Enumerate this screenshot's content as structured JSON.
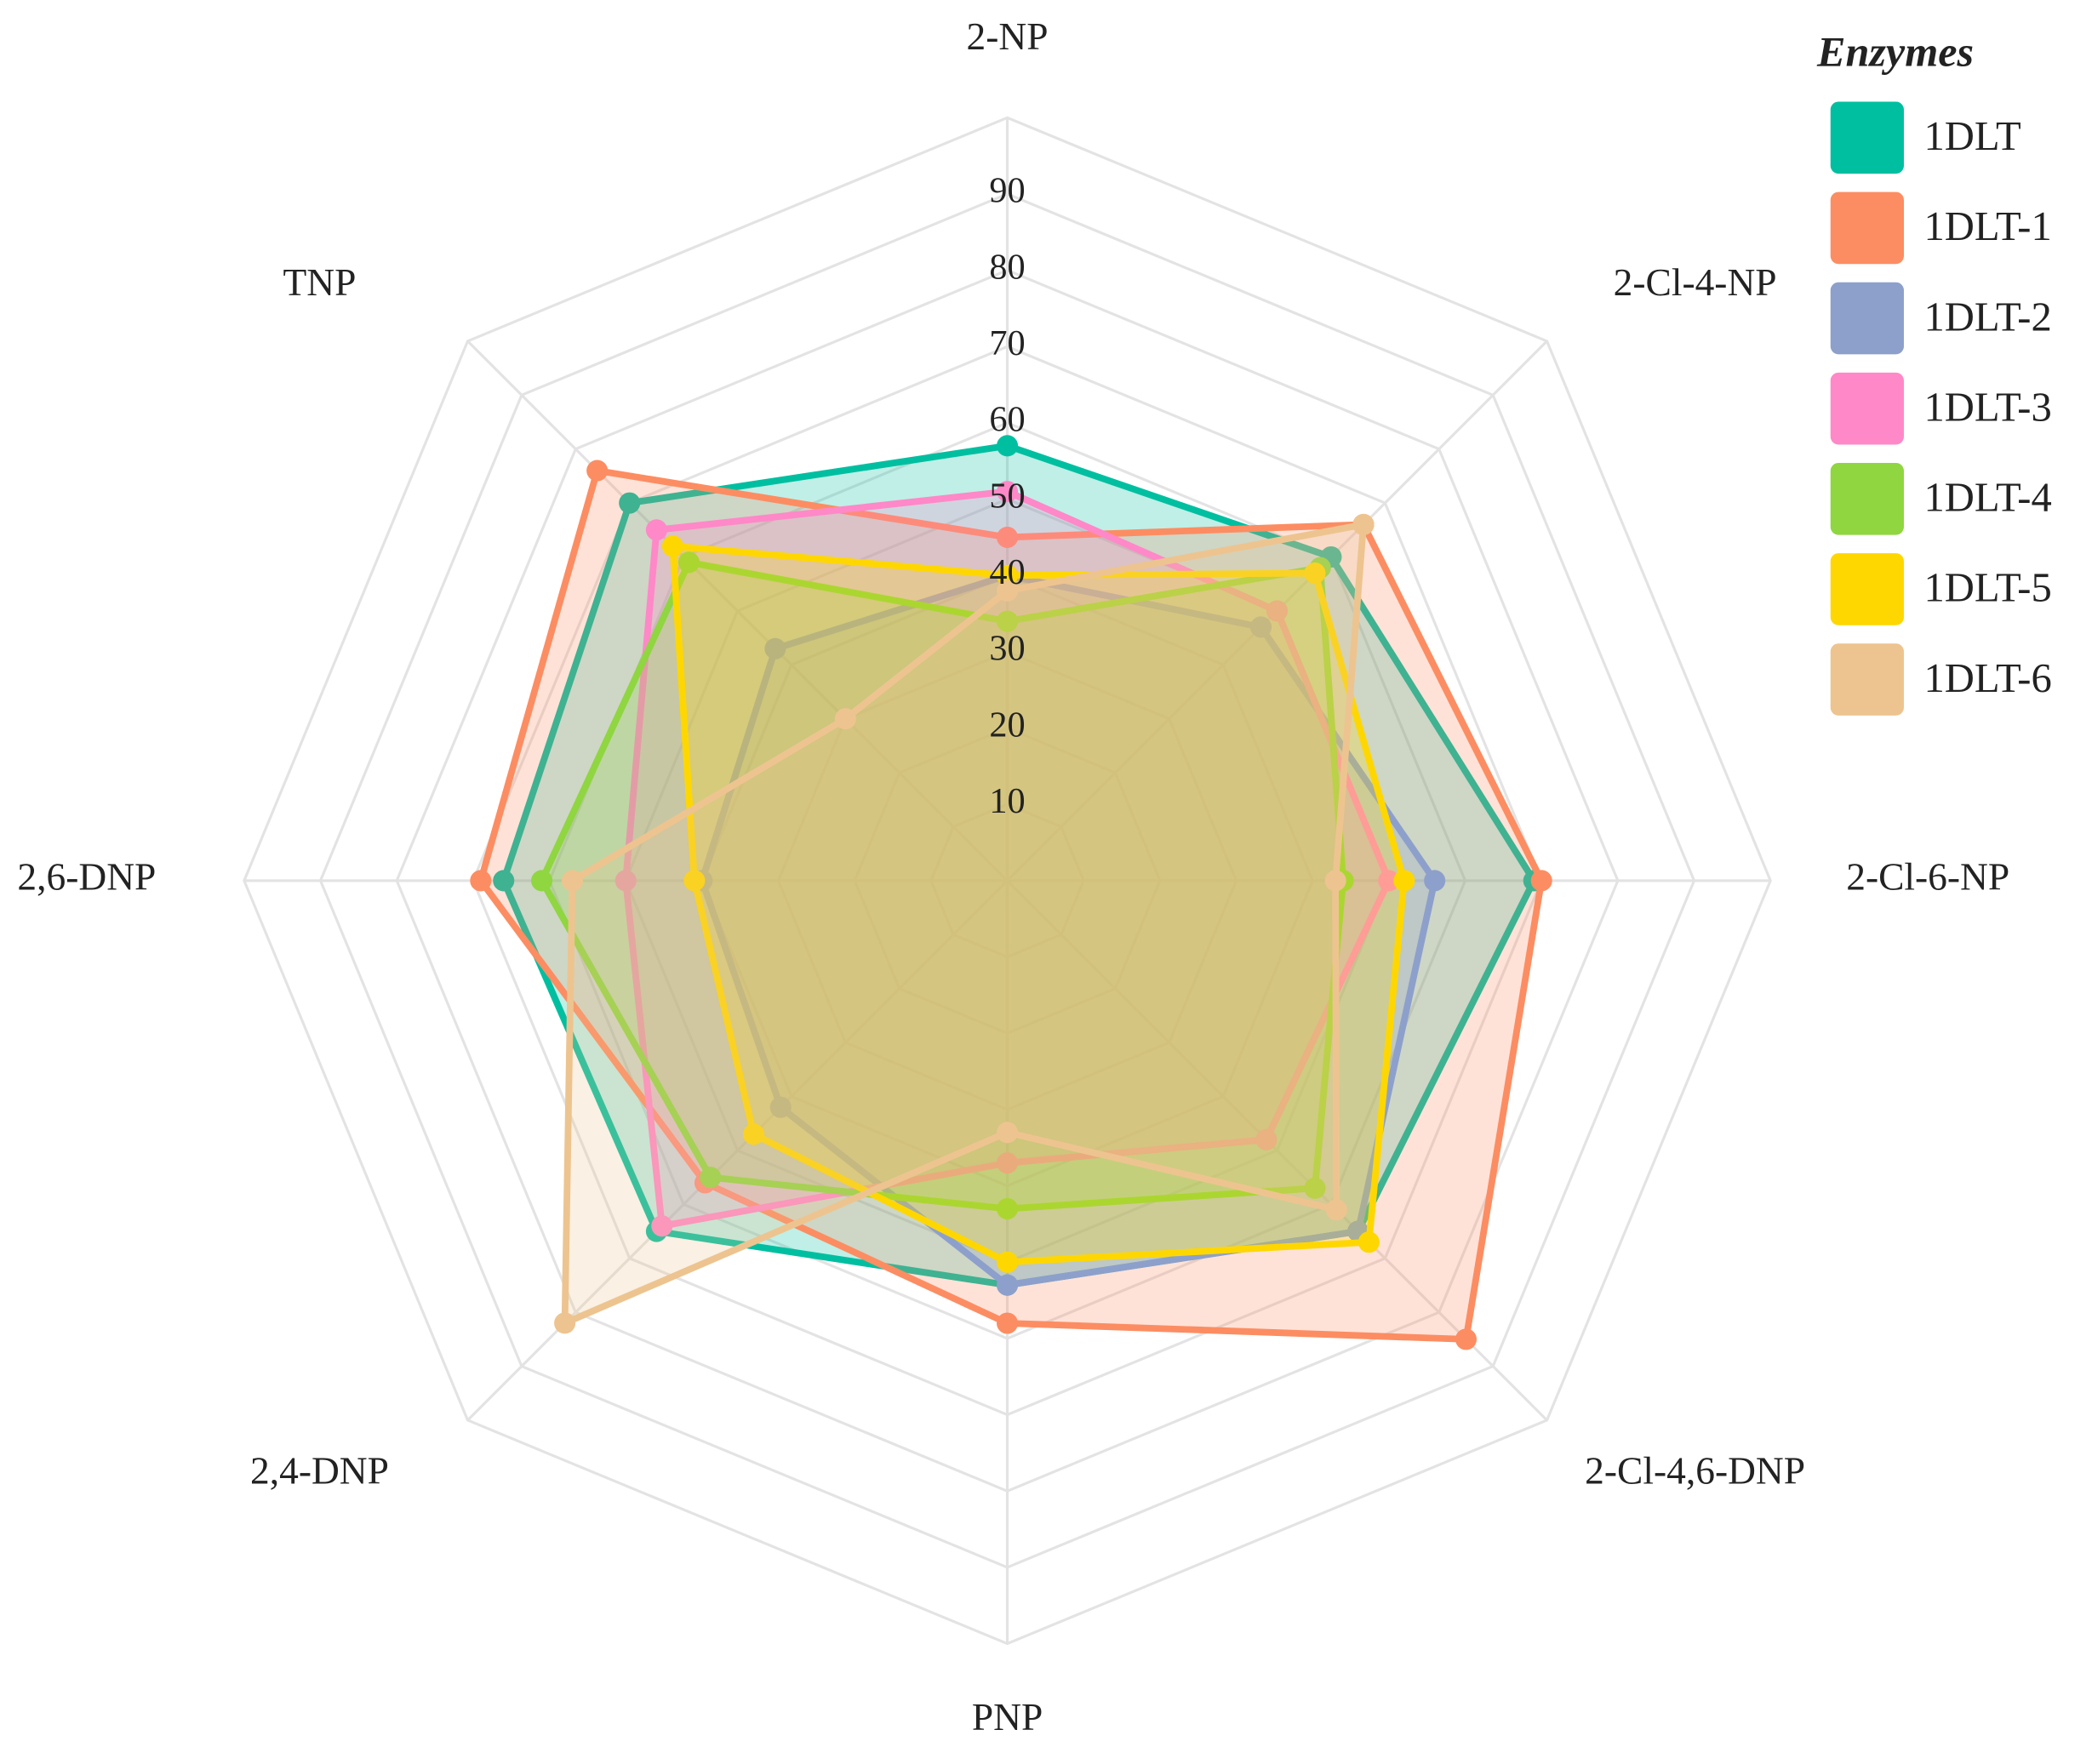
{
  "chart_data": {
    "type": "radar",
    "legend_title": "Enzymes",
    "legend_position": "top-right",
    "categories": [
      "2-NP",
      "2-Cl-4-NP",
      "2-Cl-6-NP",
      "2-Cl-4,6-DNP",
      "PNP",
      "2,4-DNP",
      "2,6-DNP",
      "TNP"
    ],
    "ylim": [
      0,
      100
    ],
    "yticks": [
      10,
      20,
      30,
      40,
      50,
      60,
      70,
      80,
      90
    ],
    "grid": true,
    "series": [
      {
        "name": "1DLT",
        "color": "#00BFA0",
        "values": [
          57,
          60,
          69,
          65,
          53,
          65,
          66,
          70
        ]
      },
      {
        "name": "1DLT-1",
        "color": "#FC8D62",
        "values": [
          45,
          66,
          70,
          85,
          58,
          56,
          69,
          76
        ]
      },
      {
        "name": "1DLT-2",
        "color": "#8DA0CB",
        "values": [
          40,
          47,
          56,
          65,
          53,
          42,
          40,
          43
        ]
      },
      {
        "name": "1DLT-3",
        "color": "#FF88C8",
        "values": [
          51,
          50,
          50,
          48,
          37,
          64,
          50,
          65
        ]
      },
      {
        "name": "1DLT-4",
        "color": "#8FD640",
        "values": [
          34,
          58,
          44,
          57,
          43,
          55,
          61,
          59
        ]
      },
      {
        "name": "1DLT-5",
        "color": "#FFD700",
        "values": [
          40,
          57,
          52,
          67,
          50,
          47,
          41,
          62
        ]
      },
      {
        "name": "1DLT-6",
        "color": "#EDC48F",
        "values": [
          38,
          66,
          43,
          61,
          33,
          82,
          57,
          30
        ]
      }
    ]
  }
}
